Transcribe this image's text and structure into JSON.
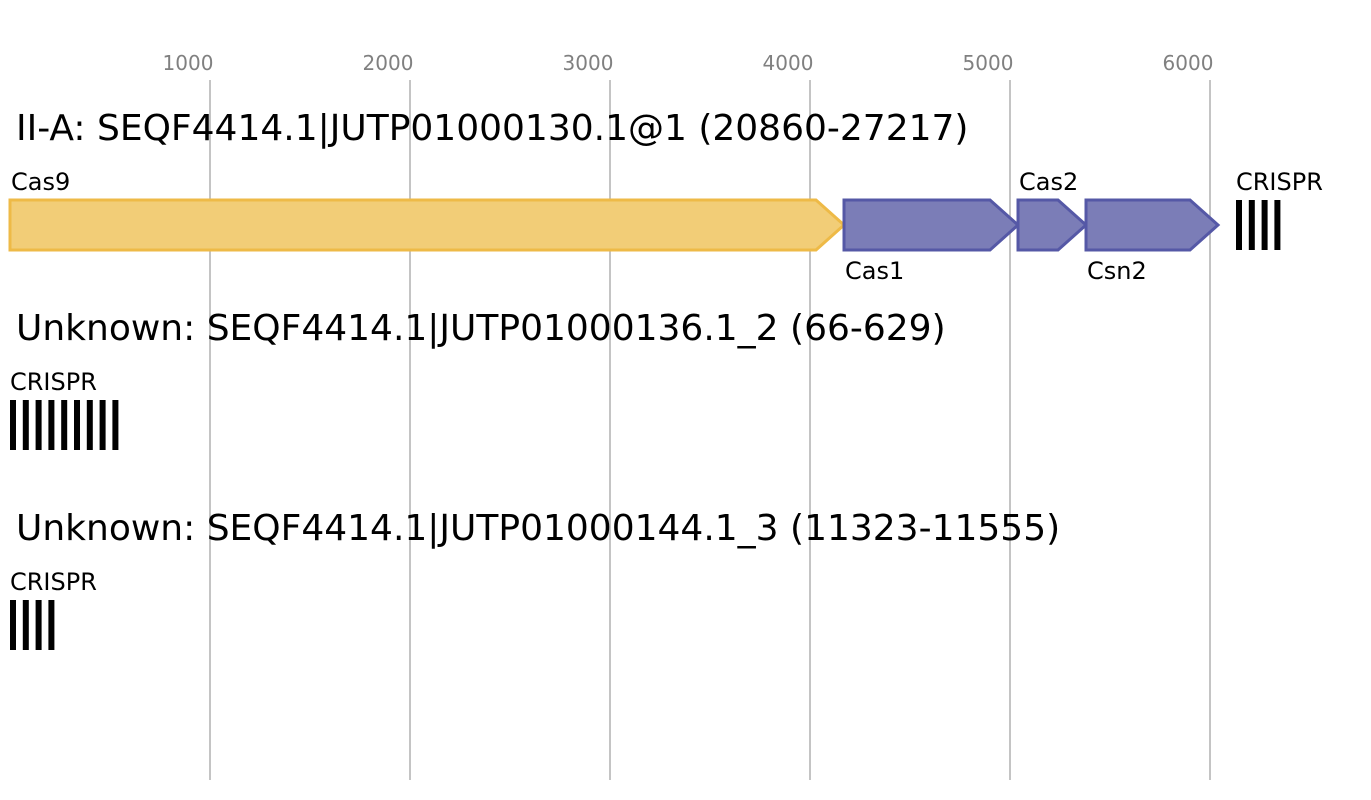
{
  "axis": {
    "ticks": [
      {
        "label": "1000",
        "value": 1000
      },
      {
        "label": "2000",
        "value": 2000
      },
      {
        "label": "3000",
        "value": 3000
      },
      {
        "label": "4000",
        "value": 4000
      },
      {
        "label": "5000",
        "value": 5000
      },
      {
        "label": "6000",
        "value": 6000
      }
    ],
    "gridline_color": "#b0b0b0",
    "tick_label_color": "#808080"
  },
  "loci": [
    {
      "title": "II-A: SEQF4414.1|JUTP01000130.1@1 (20860-27217)",
      "genes": [
        {
          "name": "Cas9",
          "start": 0,
          "end": 4170,
          "label_position": "above",
          "fill": "#f2cd77",
          "stroke": "#eeba47"
        },
        {
          "name": "Cas1",
          "start": 4170,
          "end": 5040,
          "label_position": "below",
          "fill": "#7b7db7",
          "stroke": "#5558a6"
        },
        {
          "name": "Cas2",
          "start": 5040,
          "end": 5380,
          "label_position": "above",
          "fill": "#7b7db7",
          "stroke": "#5558a6"
        },
        {
          "name": "Csn2",
          "start": 5380,
          "end": 6040,
          "label_position": "below",
          "fill": "#7b7db7",
          "stroke": "#5558a6"
        }
      ],
      "crispr": {
        "label": "CRISPR",
        "start": 6130,
        "repeats": 4
      }
    },
    {
      "title": "Unknown: SEQF4414.1|JUTP01000136.1_2 (66-629)",
      "genes": [],
      "crispr": {
        "label": "CRISPR",
        "start": 0,
        "repeats": 9
      }
    },
    {
      "title": "Unknown: SEQF4414.1|JUTP01000144.1_3 (11323-11555)",
      "genes": [],
      "crispr": {
        "label": "CRISPR",
        "start": 0,
        "repeats": 4
      }
    }
  ]
}
